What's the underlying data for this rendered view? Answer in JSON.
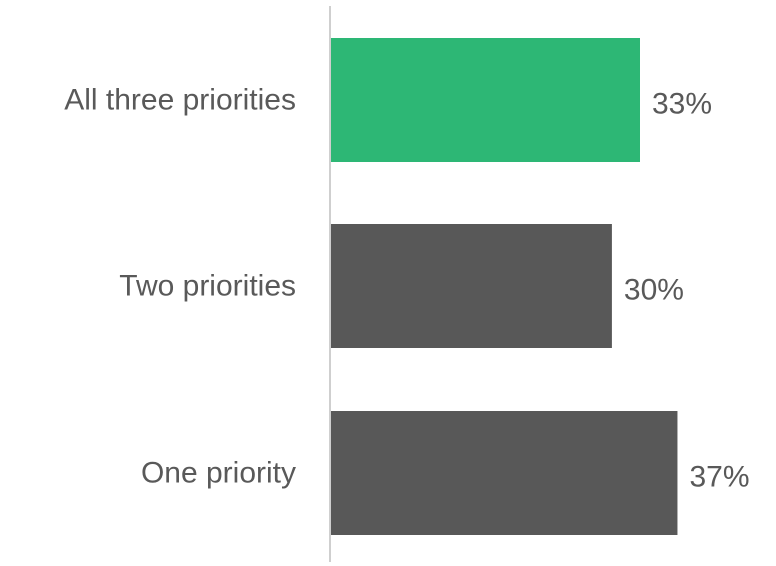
{
  "chart_data": {
    "type": "bar",
    "orientation": "horizontal",
    "categories": [
      "All three priorities",
      "Two priorities",
      "One priority"
    ],
    "values": [
      33,
      30,
      37
    ],
    "value_labels": [
      "33%",
      "30%",
      "37%"
    ],
    "unit": "%",
    "title": "",
    "xlabel": "",
    "ylabel": "",
    "xlim": [
      0,
      40
    ],
    "grid": false,
    "legend": "none",
    "colors": {
      "highlight": "#2db775",
      "default": "#585858",
      "axis": "#bfbfbf",
      "text": "#595959"
    },
    "bar_colors": [
      "#2db775",
      "#585858",
      "#585858"
    ]
  }
}
